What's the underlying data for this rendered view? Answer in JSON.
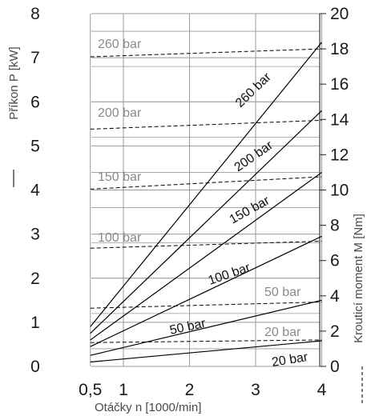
{
  "chart_data": {
    "type": "line",
    "title": "",
    "x_axis": {
      "label": "Otáčky n [1000/min]",
      "ticks": [
        "0,5",
        "1",
        "2",
        "3",
        "4"
      ],
      "range": [
        0.5,
        4
      ]
    },
    "y_left": {
      "label": "Příkon P [kW]",
      "ticks": [
        "0",
        "1",
        "2",
        "3",
        "4",
        "5",
        "6",
        "7",
        "8"
      ],
      "range": [
        0,
        8
      ]
    },
    "y_right": {
      "label": "Krouticí moment M [Nm]",
      "ticks": [
        "0",
        "2",
        "4",
        "6",
        "8",
        "10",
        "12",
        "14",
        "16",
        "18",
        "20"
      ],
      "range": [
        0,
        20
      ]
    },
    "grid": true,
    "power_series": [
      {
        "name": "260 bar",
        "x": [
          0.5,
          4
        ],
        "y": [
          0.9,
          7.35
        ]
      },
      {
        "name": "200 bar",
        "x": [
          0.5,
          4
        ],
        "y": [
          0.75,
          5.8
        ]
      },
      {
        "name": "150 bar",
        "x": [
          0.5,
          4
        ],
        "y": [
          0.6,
          4.4
        ]
      },
      {
        "name": "100 bar",
        "x": [
          0.5,
          4
        ],
        "y": [
          0.45,
          2.95
        ]
      },
      {
        "name": "50 bar",
        "x": [
          0.5,
          4
        ],
        "y": [
          0.25,
          1.5
        ]
      },
      {
        "name": "20 bar",
        "x": [
          0.5,
          4
        ],
        "y": [
          0.1,
          0.58
        ]
      }
    ],
    "torque_series": [
      {
        "name": "260 bar",
        "x": [
          0.5,
          4
        ],
        "y": [
          17.55,
          18.0
        ]
      },
      {
        "name": "200 bar",
        "x": [
          0.5,
          4
        ],
        "y": [
          13.45,
          13.95
        ]
      },
      {
        "name": "150 bar",
        "x": [
          0.5,
          4
        ],
        "y": [
          10.05,
          10.75
        ]
      },
      {
        "name": "100 bar",
        "x": [
          0.5,
          4
        ],
        "y": [
          6.7,
          7.1
        ]
      },
      {
        "name": "50 bar",
        "x": [
          0.5,
          4
        ],
        "y": [
          3.3,
          3.65
        ]
      },
      {
        "name": "20 bar",
        "x": [
          0.5,
          4
        ],
        "y": [
          1.35,
          1.5
        ]
      }
    ],
    "colors": {
      "power_line": "#000000",
      "torque_line": "#000000",
      "grid": "#9a9a9a",
      "gray_label": "#8a8a8a"
    }
  }
}
